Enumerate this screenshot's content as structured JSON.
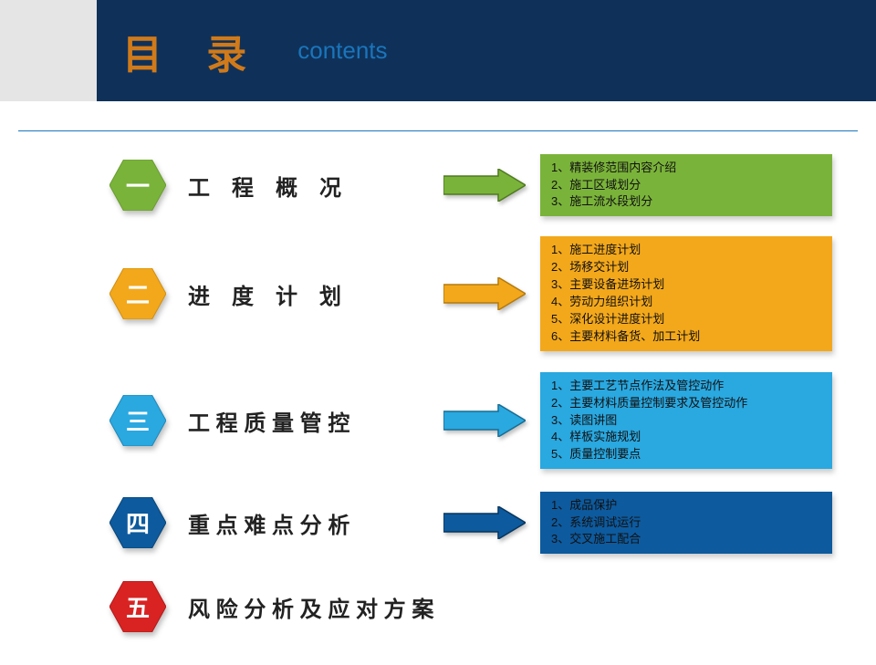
{
  "header": {
    "title_cn": "目 录",
    "title_en": "contents",
    "title_cn_color": "#d07a1a",
    "title_en_color": "#1a75bc",
    "gray_bg": "#e5e5e5",
    "navy_bg": "#0f3159"
  },
  "divider_color": "#1a75bc",
  "sections": [
    {
      "num": "一",
      "hex_fill": "#7ab33a",
      "hex_stroke": "#6a9c2f",
      "title": "工　程　概　况",
      "arrow_fill": "#7ab33a",
      "arrow_stroke": "#4f7a1f",
      "detail_bg": "#7ab33a",
      "details": [
        "1、精装修范围内容介绍",
        "2、施工区域划分",
        "3、施工流水段划分"
      ]
    },
    {
      "num": "二",
      "hex_fill": "#f3a81b",
      "hex_stroke": "#d18e0f",
      "title": "进　度　计　划",
      "arrow_fill": "#f3a81b",
      "arrow_stroke": "#b57a0c",
      "detail_bg": "#f3a81b",
      "details": [
        "1、施工进度计划",
        "2、场移交计划",
        "3、主要设备进场计划",
        "4、劳动力组织计划",
        "5、深化设计进度计划",
        "6、主要材料备货、加工计划"
      ]
    },
    {
      "num": "三",
      "hex_fill": "#2aa8e0",
      "hex_stroke": "#1f88b8",
      "title": "工 程 质 量 管 控",
      "arrow_fill": "#2aa8e0",
      "arrow_stroke": "#176d94",
      "detail_bg": "#2aa8e0",
      "details": [
        "1、主要工艺节点作法及管控动作",
        "2、主要材料质量控制要求及管控动作",
        "3、读图讲图",
        "4、样板实施规划",
        "5、质量控制要点"
      ]
    },
    {
      "num": "四",
      "hex_fill": "#0d5a9e",
      "hex_stroke": "#094677",
      "title": "重 点 难 点 分 析",
      "arrow_fill": "#0d5a9e",
      "arrow_stroke": "#06365e",
      "detail_bg": "#0d5a9e",
      "details": [
        "1、成品保护",
        "2、系统调试运行",
        "3、交叉施工配合"
      ]
    },
    {
      "num": "五",
      "hex_fill": "#d92323",
      "hex_stroke": "#b01b1b",
      "title": "风 险 分 析 及 应 对 方 案",
      "arrow_fill": null,
      "detail_bg": null,
      "details": []
    }
  ]
}
